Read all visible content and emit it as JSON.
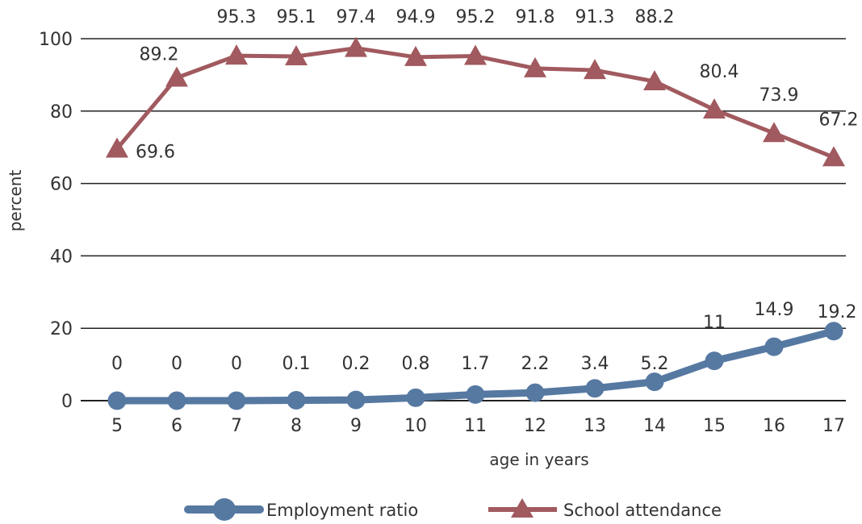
{
  "chart_data": {
    "type": "line",
    "xlabel": "age in years",
    "ylabel": "percent",
    "ylim": [
      0,
      100
    ],
    "yticks": [
      0,
      20,
      40,
      60,
      80,
      100
    ],
    "x": [
      5,
      6,
      7,
      8,
      9,
      10,
      11,
      12,
      13,
      14,
      15,
      16,
      17
    ],
    "grid": "horizontal",
    "legend_position": "bottom",
    "series": [
      {
        "name": "School attendance",
        "marker": "triangle",
        "color": "#a15a5f",
        "values": [
          69.6,
          89.2,
          95.3,
          95.1,
          97.4,
          94.9,
          95.2,
          91.8,
          91.3,
          88.2,
          80.4,
          73.9,
          67.2
        ],
        "labels": [
          "69.6",
          "89.2",
          "95.3",
          "95.1",
          "97.4",
          "94.9",
          "95.2",
          "91.8",
          "91.3",
          "88.2",
          "80.4",
          "73.9",
          "67.2"
        ]
      },
      {
        "name": "Employment ratio",
        "marker": "circle",
        "color": "#5679a2",
        "values": [
          0,
          0,
          0,
          0.1,
          0.2,
          0.8,
          1.7,
          2.2,
          3.4,
          5.2,
          11,
          14.9,
          19.2
        ],
        "labels": [
          "0",
          "0",
          "0",
          "0.1",
          "0.2",
          "0.8",
          "1.7",
          "2.2",
          "3.4",
          "5.2",
          "11",
          "14.9",
          "19.2"
        ]
      }
    ],
    "legend": [
      {
        "series": "Employment ratio",
        "label": "Employment ratio"
      },
      {
        "series": "School attendance",
        "label": "School attendance"
      }
    ]
  }
}
